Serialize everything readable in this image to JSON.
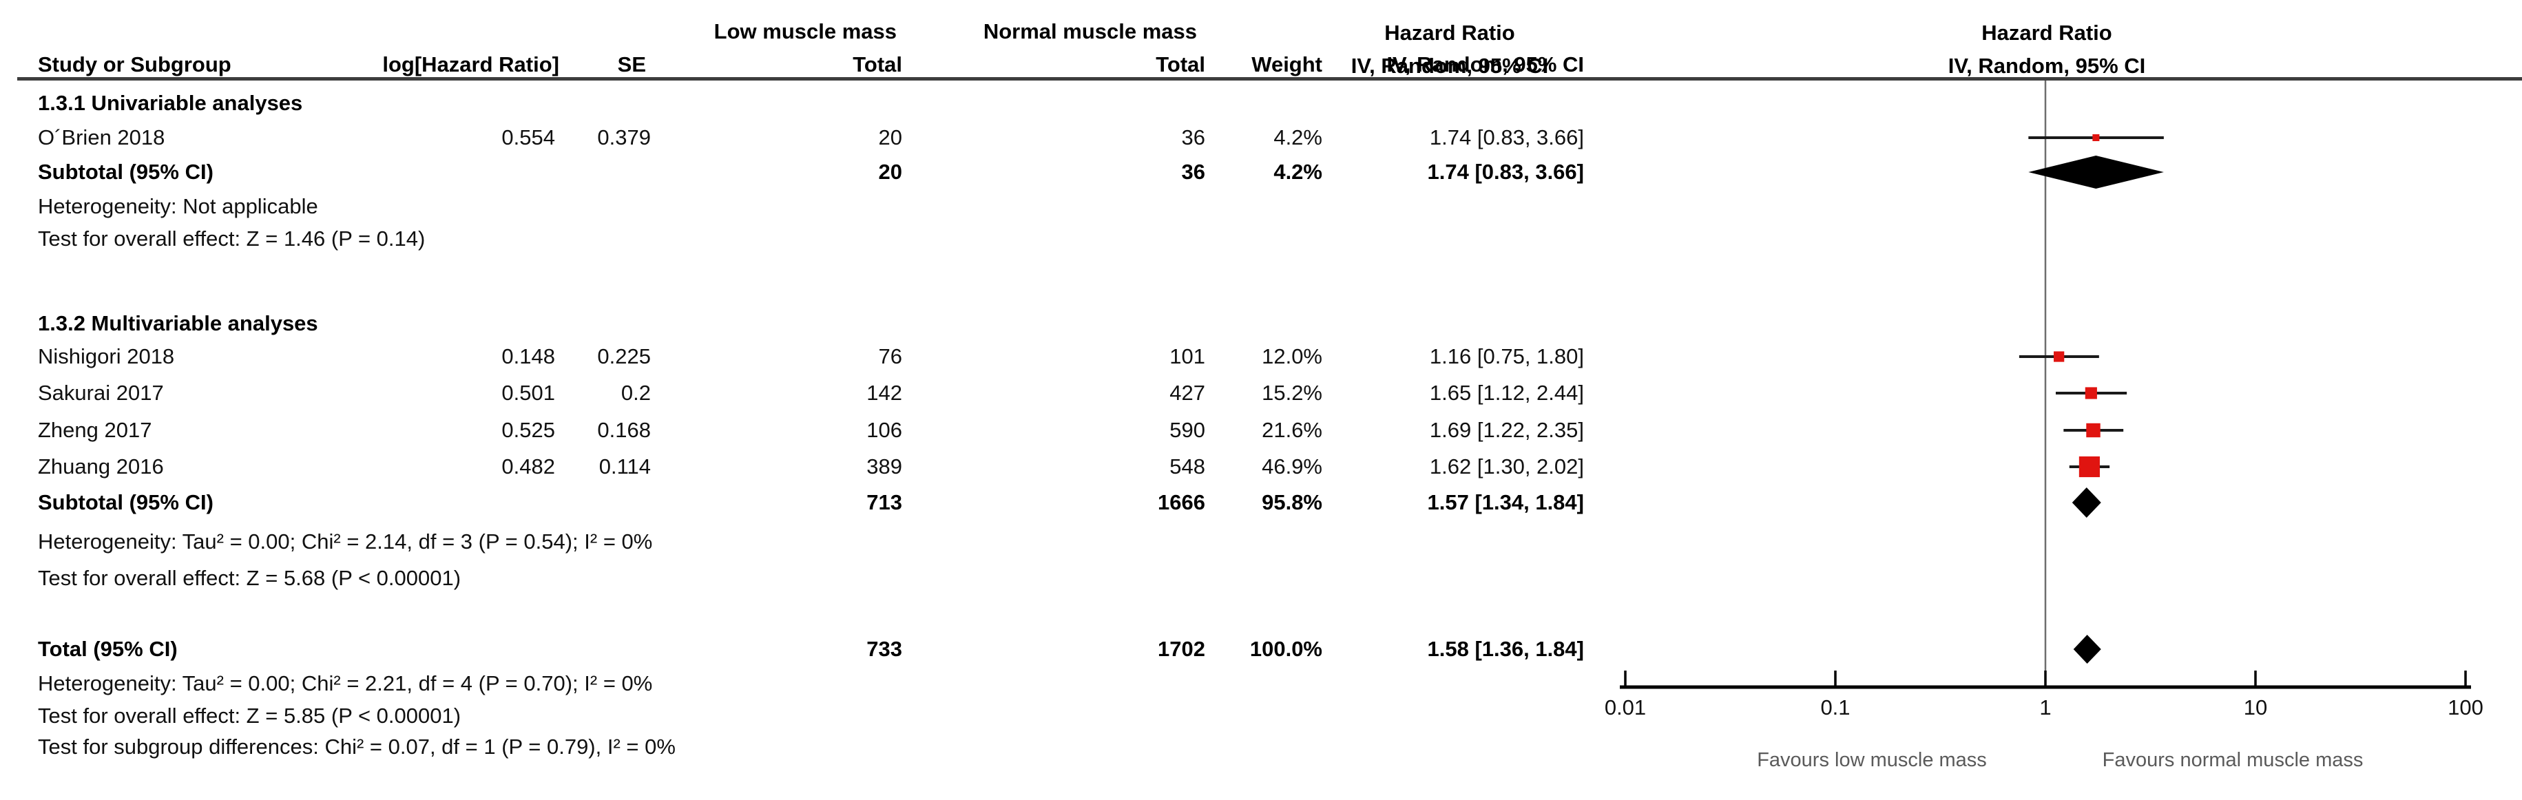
{
  "colors": {
    "marker_red": "#e01410",
    "diamond_black": "#000000",
    "ci_line": "#1a1a1a",
    "axis_black": "#000000",
    "guide_gray": "#6e6e6e"
  },
  "header": {
    "col_study": "Study or Subgroup",
    "col_loghr": "log[Hazard Ratio]",
    "col_se": "SE",
    "group_low": "Low muscle mass",
    "group_normal": "Normal muscle mass",
    "col_total_low": "Total",
    "col_total_normal": "Total",
    "col_weight": "Weight",
    "stats_title": "Hazard Ratio",
    "stats_sub": "IV, Random, 95% CI",
    "plot_title": "Hazard Ratio",
    "plot_sub": "IV, Random, 95% CI"
  },
  "chart_data": {
    "type": "forest",
    "effect_measure": "Hazard Ratio",
    "model": "IV, Random, 95% CI",
    "x_scale": "log",
    "x_range": [
      0.01,
      100
    ],
    "x_ticks": [
      "0.01",
      "0.1",
      "1",
      "10",
      "100"
    ],
    "axis_labels": {
      "left": "Favours low muscle mass",
      "right": "Favours normal muscle mass"
    },
    "groups": [
      {
        "label": "1.3.1 Univariable analyses",
        "studies": [
          {
            "study": "O´Brien 2018",
            "log_hr": "0.554",
            "se": "0.379",
            "low_total": "20",
            "normal_total": "36",
            "weight": "4.2%",
            "weight_pct": 4.2,
            "hr": 1.74,
            "ci_lo": 0.83,
            "ci_hi": 3.66,
            "ci_label": "1.74 [0.83, 3.66]"
          }
        ],
        "subtotal": {
          "label": "Subtotal (95% CI)",
          "low_total": "20",
          "normal_total": "36",
          "weight": "4.2%",
          "hr": 1.74,
          "ci_lo": 0.83,
          "ci_hi": 3.66,
          "ci_label": "1.74 [0.83, 3.66]"
        },
        "heterogeneity": "Heterogeneity: Not applicable",
        "overall_effect": "Test for overall effect: Z = 1.46 (P = 0.14)"
      },
      {
        "label": "1.3.2 Multivariable analyses",
        "studies": [
          {
            "study": "Nishigori 2018",
            "log_hr": "0.148",
            "se": "0.225",
            "low_total": "76",
            "normal_total": "101",
            "weight": "12.0%",
            "weight_pct": 12.0,
            "hr": 1.16,
            "ci_lo": 0.75,
            "ci_hi": 1.8,
            "ci_label": "1.16 [0.75, 1.80]"
          },
          {
            "study": "Sakurai 2017",
            "log_hr": "0.501",
            "se": "0.2",
            "low_total": "142",
            "normal_total": "427",
            "weight": "15.2%",
            "weight_pct": 15.2,
            "hr": 1.65,
            "ci_lo": 1.12,
            "ci_hi": 2.44,
            "ci_label": "1.65 [1.12, 2.44]"
          },
          {
            "study": "Zheng 2017",
            "log_hr": "0.525",
            "se": "0.168",
            "low_total": "106",
            "normal_total": "590",
            "weight": "21.6%",
            "weight_pct": 21.6,
            "hr": 1.69,
            "ci_lo": 1.22,
            "ci_hi": 2.35,
            "ci_label": "1.69 [1.22, 2.35]"
          },
          {
            "study": "Zhuang 2016",
            "log_hr": "0.482",
            "se": "0.114",
            "low_total": "389",
            "normal_total": "548",
            "weight": "46.9%",
            "weight_pct": 46.9,
            "hr": 1.62,
            "ci_lo": 1.3,
            "ci_hi": 2.02,
            "ci_label": "1.62 [1.30, 2.02]"
          }
        ],
        "subtotal": {
          "label": "Subtotal (95% CI)",
          "low_total": "713",
          "normal_total": "1666",
          "weight": "95.8%",
          "hr": 1.57,
          "ci_lo": 1.34,
          "ci_hi": 1.84,
          "ci_label": "1.57 [1.34, 1.84]"
        },
        "heterogeneity": "Heterogeneity: Tau² = 0.00; Chi² = 2.14, df = 3 (P = 0.54); I² = 0%",
        "overall_effect": "Test for overall effect: Z = 5.68 (P < 0.00001)"
      }
    ],
    "total": {
      "label": "Total (95% CI)",
      "low_total": "733",
      "normal_total": "1702",
      "weight": "100.0%",
      "hr": 1.58,
      "ci_lo": 1.36,
      "ci_hi": 1.84,
      "ci_label": "1.58 [1.36, 1.84]"
    },
    "total_heterogeneity": "Heterogeneity: Tau² = 0.00; Chi² = 2.21, df = 4 (P = 0.70); I² = 0%",
    "total_overall_effect": "Test for overall effect: Z = 5.85 (P < 0.00001)",
    "subgroup_differences": "Test for subgroup differences: Chi² = 0.07, df = 1 (P = 0.79), I² = 0%"
  }
}
